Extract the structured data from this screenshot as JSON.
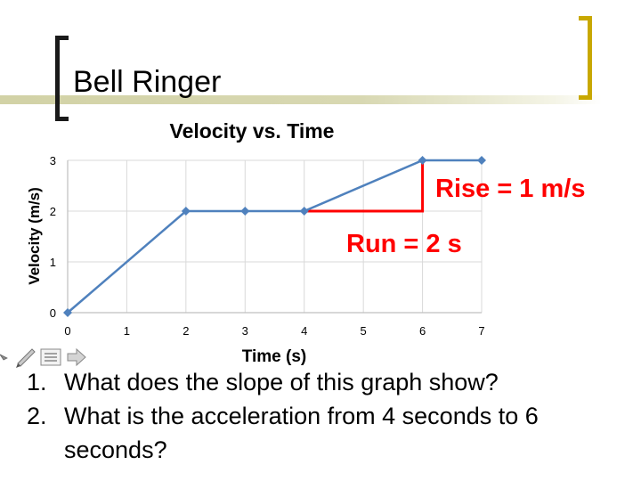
{
  "slide": {
    "title": "Bell Ringer",
    "questions": [
      {
        "number": "1.",
        "text": "What does the slope of this graph show?"
      },
      {
        "number": "2.",
        "text": "What is the acceleration from 4 seconds to 6 seconds?"
      }
    ]
  },
  "colors": {
    "series": "#4f81bd",
    "annotation": "#ff0000",
    "axis_gray": "#bfbfbf",
    "title_bar": "#d8d8b2",
    "bracket_right": "#c8a800"
  },
  "tool_icons": [
    "pointer-icon",
    "pen-icon",
    "slide-menu-icon",
    "next-arrow-icon"
  ],
  "chart_data": {
    "type": "line",
    "title": "Velocity vs. Time",
    "xlabel": "Time (s)",
    "ylabel": "Velocity (m/s)",
    "x": [
      0,
      1,
      2,
      3,
      4,
      5,
      6,
      7
    ],
    "xlim": [
      0,
      7
    ],
    "ylim": [
      0,
      3
    ],
    "x_ticks": [
      0,
      1,
      2,
      3,
      4,
      5,
      6,
      7
    ],
    "y_ticks": [
      0,
      1,
      2,
      3
    ],
    "grid": true,
    "series": [
      {
        "points": [
          [
            0,
            0
          ],
          [
            2,
            2
          ],
          [
            3,
            2
          ],
          [
            4,
            2
          ],
          [
            6,
            3
          ],
          [
            7,
            3
          ]
        ]
      }
    ],
    "annotations": {
      "rise_label": "Rise = 1 m/s",
      "run_label": "Run = 2 s",
      "run_segment": {
        "from": [
          4,
          2
        ],
        "to": [
          6,
          2
        ]
      },
      "rise_segment": {
        "from": [
          6,
          2
        ],
        "to": [
          6,
          3
        ]
      }
    }
  }
}
